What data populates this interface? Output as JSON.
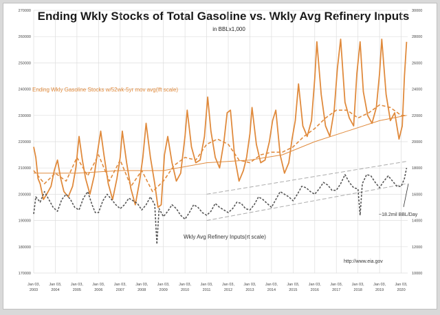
{
  "chart_data": {
    "type": "line",
    "title": "Ending Wkly Stocks of Total Gasoline  vs. Wkly Avg Refinery Inputs",
    "subtitle": "in BBLx1,000",
    "left_axis": {
      "ticks": [
        170000,
        180000,
        190000,
        200000,
        210000,
        220000,
        230000,
        240000,
        250000,
        260000,
        270000
      ],
      "range": [
        170000,
        270000
      ]
    },
    "right_axis": {
      "ticks": [
        10000,
        12000,
        14000,
        16000,
        18000,
        20000,
        22000,
        24000,
        26000,
        28000,
        30000
      ],
      "range": [
        10000,
        30000
      ]
    },
    "x_axis": {
      "ticks": [
        "Jan 03, 2003",
        "Jan 03, 2004",
        "Jan 03, 2005",
        "Jan 03, 2006",
        "Jan 03, 2007",
        "Jan 03, 2008",
        "Jan 03, 2009",
        "Jan 03, 2010",
        "Jan 03, 2011",
        "Jan 03, 2012",
        "Jan 03, 2013",
        "Jan 03, 2014",
        "Jan 03, 2015",
        "Jan 03, 2016",
        "Jan 03, 2017",
        "Jan 03, 2018",
        "Jan 03, 2019",
        "Jan 03, 2020"
      ],
      "range": [
        2003,
        2020.3
      ]
    },
    "grid": true,
    "series": [
      {
        "name": "Ending Wkly Gasoline Stocks w/52wk-5yr mov avg(lft scale)",
        "axis": "left",
        "style": "solid",
        "color": "#e08a3c",
        "x": [
          2003.0,
          2003.1,
          2003.2,
          2003.3,
          2003.45,
          2003.6,
          2003.8,
          2003.95,
          2004.1,
          2004.25,
          2004.4,
          2004.6,
          2004.8,
          2004.95,
          2005.1,
          2005.25,
          2005.4,
          2005.6,
          2005.8,
          2005.95,
          2006.1,
          2006.25,
          2006.45,
          2006.65,
          2006.85,
          2007.0,
          2007.1,
          2007.3,
          2007.5,
          2007.7,
          2007.9,
          2008.05,
          2008.2,
          2008.4,
          2008.6,
          2008.75,
          2008.9,
          2009.05,
          2009.2,
          2009.4,
          2009.6,
          2009.8,
          2010.0,
          2010.1,
          2010.3,
          2010.5,
          2010.7,
          2010.9,
          2011.05,
          2011.2,
          2011.4,
          2011.6,
          2011.8,
          2011.95,
          2012.1,
          2012.3,
          2012.5,
          2012.7,
          2012.85,
          2013.0,
          2013.1,
          2013.3,
          2013.5,
          2013.7,
          2013.9,
          2014.05,
          2014.2,
          2014.4,
          2014.6,
          2014.8,
          2014.95,
          2015.1,
          2015.25,
          2015.45,
          2015.65,
          2015.85,
          2016.0,
          2016.1,
          2016.3,
          2016.5,
          2016.7,
          2016.9,
          2017.05,
          2017.2,
          2017.4,
          2017.6,
          2017.8,
          2017.95,
          2018.1,
          2018.25,
          2018.45,
          2018.65,
          2018.85,
          2019.0,
          2019.1,
          2019.3,
          2019.5,
          2019.7,
          2019.9,
          2020.05,
          2020.15,
          2020.25
        ],
        "y": [
          218000,
          214000,
          206000,
          204000,
          198000,
          200000,
          203000,
          209000,
          213000,
          206000,
          201000,
          199000,
          203000,
          210000,
          222000,
          213000,
          206000,
          200000,
          207000,
          216000,
          224000,
          215000,
          204000,
          198000,
          206000,
          214000,
          224000,
          212000,
          202000,
          196000,
          205000,
          214000,
          227000,
          214000,
          204000,
          195000,
          196000,
          215000,
          222000,
          212000,
          205000,
          208000,
          222000,
          232000,
          218000,
          212000,
          213000,
          222000,
          237000,
          224000,
          214000,
          210000,
          220000,
          231000,
          232000,
          214000,
          205000,
          209000,
          214000,
          223000,
          233000,
          219000,
          212000,
          213000,
          220000,
          228000,
          232000,
          215000,
          208000,
          212000,
          221000,
          228000,
          242000,
          226000,
          222000,
          228000,
          244000,
          258000,
          238000,
          226000,
          222000,
          232000,
          248000,
          259000,
          235000,
          229000,
          226000,
          246000,
          258000,
          239000,
          230000,
          227000,
          233000,
          246000,
          259000,
          238000,
          228000,
          231000,
          221000,
          226000,
          245000,
          258000
        ]
      },
      {
        "axis": "left",
        "style": "dashed",
        "color": "#e08a3c",
        "x": [
          2003.0,
          2003.5,
          2004.0,
          2004.5,
          2005.0,
          2005.5,
          2006.0,
          2006.5,
          2007.0,
          2007.5,
          2008.0,
          2008.5,
          2009.0,
          2009.5,
          2010.0,
          2010.5,
          2011.0,
          2011.5,
          2012.0,
          2012.5,
          2013.0,
          2013.5,
          2014.0,
          2014.5,
          2015.0,
          2015.5,
          2016.0,
          2016.5,
          2017.0,
          2017.5,
          2018.0,
          2018.5,
          2019.0,
          2019.5,
          2020.0,
          2020.25
        ],
        "y": [
          209000,
          204000,
          208000,
          205000,
          214000,
          207000,
          215000,
          205000,
          213000,
          203000,
          209000,
          201000,
          205000,
          211000,
          214000,
          213000,
          219000,
          221000,
          219000,
          213000,
          212000,
          215000,
          216000,
          216000,
          218000,
          222000,
          225000,
          229000,
          232000,
          232000,
          229000,
          231000,
          234000,
          233000,
          230000,
          230000
        ]
      },
      {
        "axis": "left",
        "style": "solid-thin",
        "color": "#e08a3c",
        "x": [
          2003.0,
          2005.0,
          2007.0,
          2009.0,
          2011.0,
          2013.0,
          2014.5,
          2016.0,
          2017.5,
          2019.0,
          2020.25
        ],
        "y": [
          208000,
          208000,
          209000,
          209000,
          212000,
          213000,
          215000,
          220000,
          224000,
          228000,
          230000
        ]
      },
      {
        "name": "Wkly Avg Refinery Inputs(rt scale)",
        "axis": "right",
        "style": "dashed",
        "color": "#555555",
        "x": [
          2003.0,
          2003.1,
          2003.3,
          2003.5,
          2003.7,
          2003.9,
          2004.1,
          2004.3,
          2004.5,
          2004.7,
          2004.9,
          2005.1,
          2005.3,
          2005.5,
          2005.7,
          2005.85,
          2006.0,
          2006.2,
          2006.4,
          2006.6,
          2006.8,
          2007.0,
          2007.2,
          2007.4,
          2007.6,
          2007.8,
          2008.0,
          2008.2,
          2008.4,
          2008.6,
          2008.7,
          2008.8,
          2009.0,
          2009.2,
          2009.4,
          2009.6,
          2009.8,
          2010.0,
          2010.2,
          2010.4,
          2010.6,
          2010.8,
          2011.0,
          2011.2,
          2011.4,
          2011.6,
          2011.8,
          2012.0,
          2012.2,
          2012.4,
          2012.6,
          2012.8,
          2013.0,
          2013.2,
          2013.4,
          2013.6,
          2013.8,
          2014.0,
          2014.2,
          2014.4,
          2014.6,
          2014.8,
          2015.0,
          2015.2,
          2015.4,
          2015.6,
          2015.8,
          2016.0,
          2016.2,
          2016.4,
          2016.6,
          2016.8,
          2017.0,
          2017.2,
          2017.4,
          2017.6,
          2017.8,
          2018.0,
          2018.1,
          2018.2,
          2018.4,
          2018.6,
          2018.8,
          2019.0,
          2019.2,
          2019.4,
          2019.6,
          2019.8,
          2020.0,
          2020.15,
          2020.25
        ],
        "y": [
          14500,
          15800,
          15400,
          16200,
          15600,
          15000,
          14700,
          15600,
          16000,
          15600,
          15000,
          14800,
          15700,
          16200,
          15200,
          14600,
          14600,
          15500,
          16000,
          15600,
          15200,
          14900,
          15200,
          15700,
          15500,
          15300,
          14800,
          15200,
          15800,
          15200,
          12200,
          14900,
          14300,
          14700,
          15200,
          14900,
          14400,
          14100,
          14600,
          15200,
          15000,
          14600,
          14400,
          14700,
          15300,
          15000,
          14800,
          14600,
          14900,
          15400,
          15300,
          14900,
          14800,
          15200,
          15800,
          15600,
          15300,
          15000,
          15600,
          16200,
          16000,
          15800,
          15500,
          16000,
          16600,
          16500,
          16200,
          16000,
          16400,
          16900,
          16700,
          16300,
          16300,
          16800,
          17500,
          16900,
          16500,
          16400,
          14400,
          16800,
          17500,
          17400,
          16900,
          16500,
          17000,
          17400,
          17000,
          16600,
          16600,
          17200,
          18000
        ]
      }
    ],
    "annotations": {
      "orange_label": "Ending Wkly Gasoline Stocks w/52wk-5yr mov avg(lft scale)",
      "refinery_label": "Wkly Avg Refinery Inputs(rt scale)",
      "capacity_note": "~18.2mil BBL/Day",
      "source": "http://www.eia.gov"
    },
    "trend_channel": [
      {
        "from": [
          2011.0,
          14000
        ],
        "to": [
          2020.25,
          16800
        ]
      },
      {
        "from": [
          2011.0,
          16000
        ],
        "to": [
          2020.25,
          18500
        ]
      }
    ]
  }
}
